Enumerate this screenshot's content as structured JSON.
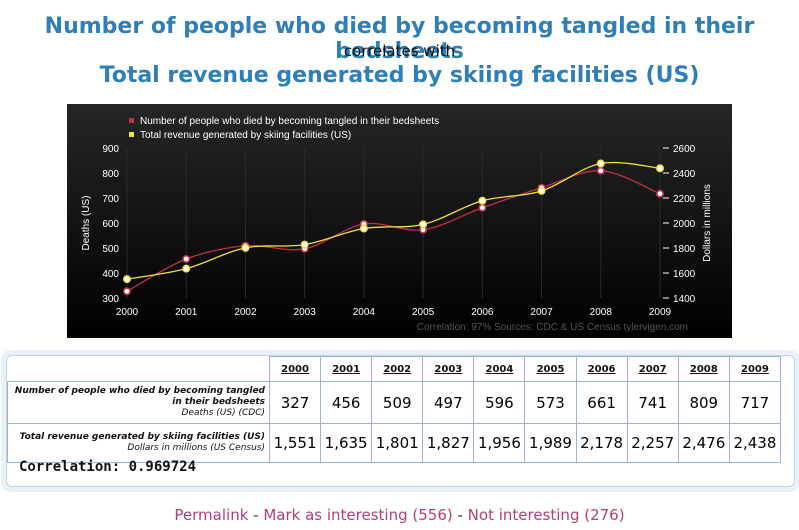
{
  "header": {
    "title_primary": "Number of people who died by becoming tangled in their bedsheets",
    "connector": "correlates with",
    "title_secondary": "Total revenue generated by skiing facilities (US)"
  },
  "chart_data": {
    "type": "line",
    "x": [
      "2000",
      "2001",
      "2002",
      "2003",
      "2004",
      "2005",
      "2006",
      "2007",
      "2008",
      "2009"
    ],
    "series": [
      {
        "name": "Number of people who died by becoming tangled in their bedsheets",
        "axis": "left",
        "color": "#c0304a",
        "values": [
          327,
          456,
          509,
          497,
          596,
          573,
          661,
          741,
          809,
          717
        ]
      },
      {
        "name": "Total revenue generated by skiing facilities (US)",
        "axis": "right",
        "color": "#f0e040",
        "values": [
          1551,
          1635,
          1801,
          1827,
          1956,
          1989,
          2178,
          2257,
          2476,
          2438
        ]
      }
    ],
    "y_left": {
      "label": "Deaths (US)",
      "range": [
        300,
        900
      ],
      "ticks": [
        "300",
        "400",
        "500",
        "600",
        "700",
        "800",
        "900"
      ]
    },
    "y_right": {
      "label": "Dollars in millions",
      "range": [
        1400,
        2600
      ],
      "ticks": [
        "1400",
        "1600",
        "1800",
        "2000",
        "2200",
        "2400",
        "2600"
      ]
    },
    "legend_position": "top-left",
    "background": "#000000",
    "footer": "Correlation: 97%   Sources: CDC & US Census   tylervigen.com"
  },
  "table": {
    "years": [
      "2000",
      "2001",
      "2002",
      "2003",
      "2004",
      "2005",
      "2006",
      "2007",
      "2008",
      "2009"
    ],
    "rows": [
      {
        "label_main": "Number of people who died by becoming tangled in their bedsheets",
        "label_sub": "Deaths (US) (CDC)",
        "values": [
          "327",
          "456",
          "509",
          "497",
          "596",
          "573",
          "661",
          "741",
          "809",
          "717"
        ]
      },
      {
        "label_main": "Total revenue generated by skiing facilities (US)",
        "label_sub": "Dollars in millions (US Census)",
        "values": [
          "1,551",
          "1,635",
          "1,801",
          "1,827",
          "1,956",
          "1,989",
          "2,178",
          "2,257",
          "2,476",
          "2,438"
        ]
      }
    ],
    "correlation": "Correlation: 0.969724"
  },
  "links": {
    "permalink": "Permalink",
    "sep": " - ",
    "interesting": "Mark as interesting (556)",
    "not_interesting": "Not interesting (276)"
  }
}
